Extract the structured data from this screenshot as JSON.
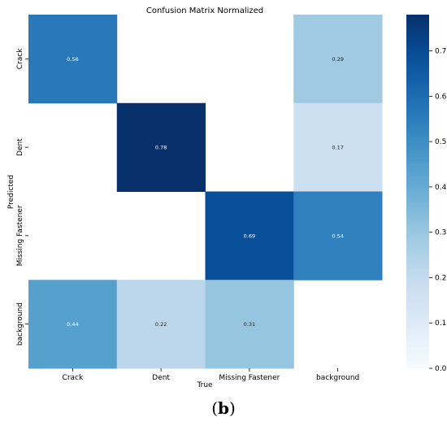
{
  "chart_data": {
    "type": "heatmap",
    "title": "Confusion Matrix Normalized",
    "xlabel": "True",
    "ylabel": "Predicted",
    "x_categories": [
      "Crack",
      "Dent",
      "Missing Fastener",
      "background"
    ],
    "y_categories": [
      "Crack",
      "Dent",
      "Missing Fastener",
      "background"
    ],
    "values": [
      [
        0.56,
        null,
        null,
        0.29
      ],
      [
        null,
        0.78,
        null,
        0.17
      ],
      [
        null,
        null,
        0.69,
        0.54
      ],
      [
        0.44,
        0.22,
        0.31,
        null
      ]
    ],
    "colorbar": {
      "range": [
        0.0,
        0.78
      ],
      "ticks": [
        0.0,
        0.1,
        0.2,
        0.3,
        0.4,
        0.5,
        0.6,
        0.7
      ],
      "tick_labels": [
        "0.0",
        "0.1",
        "0.2",
        "0.3",
        "0.4",
        "0.5",
        "0.6",
        "0.7"
      ],
      "colormap": "Blues"
    },
    "colors": {
      "low": "#f7fbff",
      "high": "#08306b"
    }
  },
  "caption": {
    "open": "(",
    "letter": "b",
    "close": ")"
  }
}
